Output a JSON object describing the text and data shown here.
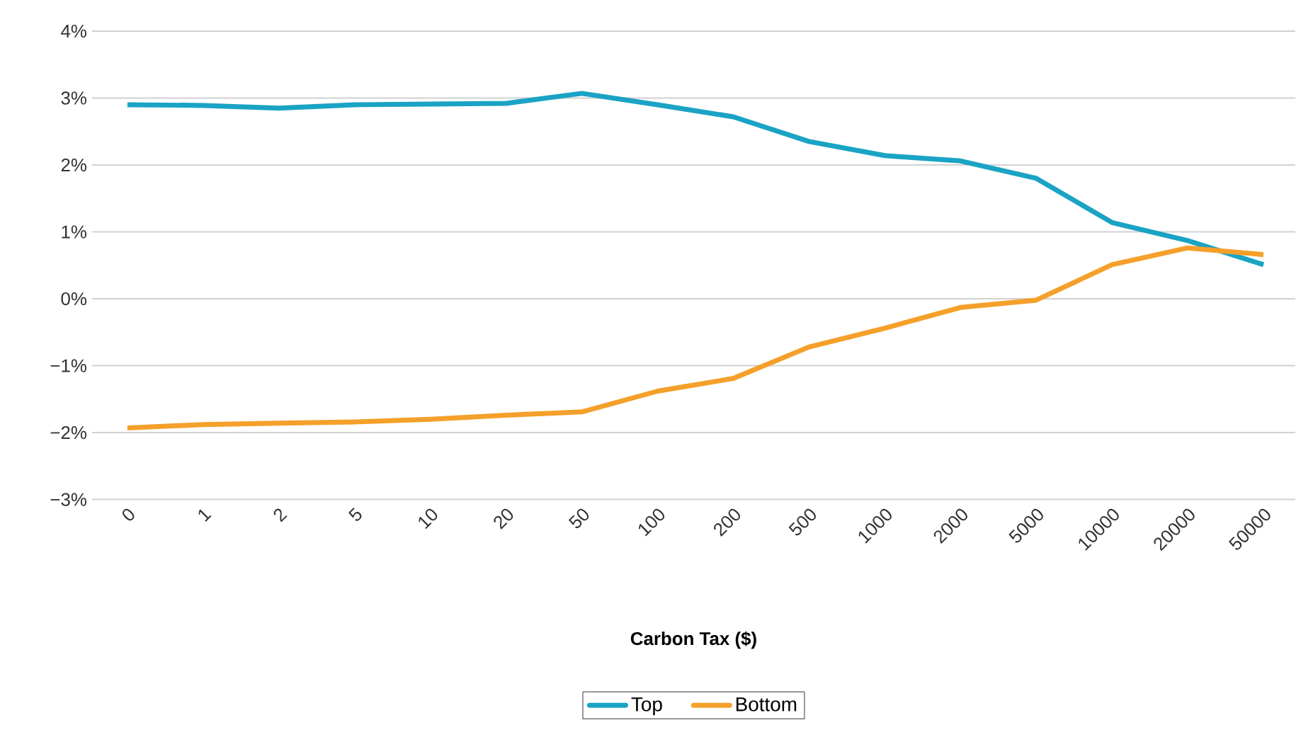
{
  "chart_data": {
    "type": "line",
    "xlabel": "**Carbon Tax ($)**",
    "categories": [
      "0",
      "1",
      "2",
      "5",
      "10",
      "20",
      "50",
      "100",
      "200",
      "500",
      "1000",
      "2000",
      "5000",
      "10000",
      "20000",
      "50000"
    ],
    "series": [
      {
        "name": "Top",
        "color": "#1aa3c4",
        "values": [
          2.9,
          2.89,
          2.85,
          2.9,
          2.91,
          2.92,
          3.07,
          2.9,
          2.72,
          2.35,
          2.14,
          2.06,
          1.8,
          1.14,
          0.87,
          0.51
        ]
      },
      {
        "name": "Bottom",
        "color": "#f5a02a",
        "values": [
          -1.93,
          -1.88,
          -1.86,
          -1.84,
          -1.8,
          -1.74,
          -1.69,
          -1.38,
          -1.19,
          -0.72,
          -0.44,
          -0.13,
          -0.02,
          0.51,
          0.76,
          0.66
        ]
      }
    ],
    "ylim": [
      -3,
      4
    ],
    "yticks": [
      {
        "value": -3,
        "label": "−3%"
      },
      {
        "value": -2,
        "label": "−2%"
      },
      {
        "value": -1,
        "label": "−1%"
      },
      {
        "value": 0,
        "label": "0%"
      },
      {
        "value": 1,
        "label": "1%"
      },
      {
        "value": 2,
        "label": "2%"
      },
      {
        "value": 3,
        "label": "3%"
      },
      {
        "value": 4,
        "label": "4%"
      }
    ],
    "grid": "y",
    "legend": "bottom",
    "marker": "none",
    "line_style": "solid"
  }
}
